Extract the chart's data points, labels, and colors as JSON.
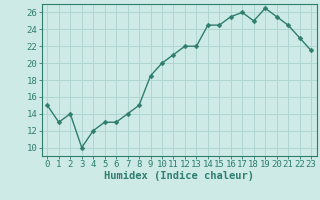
{
  "x": [
    0,
    1,
    2,
    3,
    4,
    5,
    6,
    7,
    8,
    9,
    10,
    11,
    12,
    13,
    14,
    15,
    16,
    17,
    18,
    19,
    20,
    21,
    22,
    23
  ],
  "y": [
    15,
    13,
    14,
    10,
    12,
    13,
    13,
    14,
    15,
    18.5,
    20,
    21,
    22,
    22,
    24.5,
    24.5,
    25.5,
    26,
    25,
    26.5,
    25.5,
    24.5,
    23,
    21.5
  ],
  "xlabel": "Humidex (Indice chaleur)",
  "ylim": [
    9,
    27
  ],
  "xlim": [
    -0.5,
    23.5
  ],
  "yticks": [
    10,
    12,
    14,
    16,
    18,
    20,
    22,
    24,
    26
  ],
  "xticks": [
    0,
    1,
    2,
    3,
    4,
    5,
    6,
    7,
    8,
    9,
    10,
    11,
    12,
    13,
    14,
    15,
    16,
    17,
    18,
    19,
    20,
    21,
    22,
    23
  ],
  "line_color": "#2e7d6e",
  "marker_size": 2.5,
  "bg_color": "#cdeae7",
  "grid_color": "#afd6d2",
  "axis_color": "#2e7d6e",
  "tick_color": "#2e7d6e",
  "label_color": "#2e7d6e",
  "xlabel_fontsize": 7.5,
  "tick_fontsize": 6.5
}
